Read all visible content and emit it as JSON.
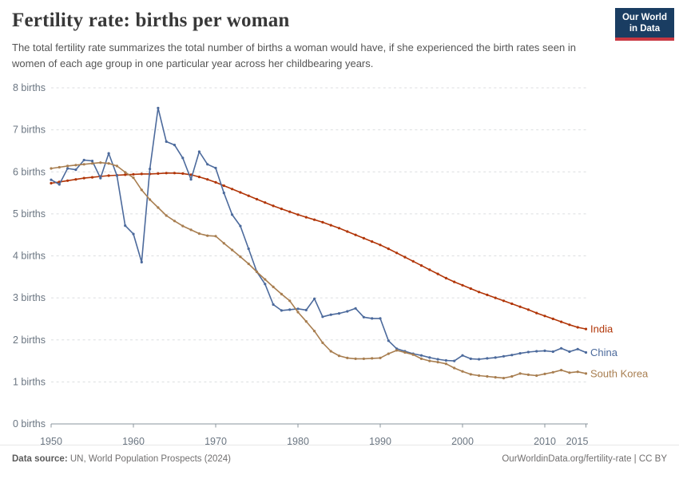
{
  "header": {
    "title": "Fertility rate: births per woman",
    "subtitle": "The total fertility rate summarizes the total number of births a woman would have, if she experienced the birth rates seen in women of each age group in one particular year across her childbearing years.",
    "logo": {
      "line1": "Our World",
      "line2": "in Data",
      "bg_color": "#1a3d62",
      "accent_color": "#c83741"
    }
  },
  "chart_data": {
    "type": "line",
    "title": "Fertility rate: births per woman",
    "xlabel": "",
    "ylabel": "births",
    "xlim": [
      1950,
      2015
    ],
    "ylim": [
      0,
      8
    ],
    "grid": "horizontal-dashed",
    "legend_position": "end-of-line-labels",
    "x_ticks": [
      1950,
      1960,
      1970,
      1980,
      1990,
      2000,
      2010,
      2015
    ],
    "y_ticks": [
      0,
      1,
      2,
      3,
      4,
      5,
      6,
      7,
      8
    ],
    "y_tick_suffix": " births",
    "years": [
      1950,
      1951,
      1952,
      1953,
      1954,
      1955,
      1956,
      1957,
      1958,
      1959,
      1960,
      1961,
      1962,
      1963,
      1964,
      1965,
      1966,
      1967,
      1968,
      1969,
      1970,
      1971,
      1972,
      1973,
      1974,
      1975,
      1976,
      1977,
      1978,
      1979,
      1980,
      1981,
      1982,
      1983,
      1984,
      1985,
      1986,
      1987,
      1988,
      1989,
      1990,
      1991,
      1992,
      1993,
      1994,
      1995,
      1996,
      1997,
      1998,
      1999,
      2000,
      2001,
      2002,
      2003,
      2004,
      2005,
      2006,
      2007,
      2008,
      2009,
      2010,
      2011,
      2012,
      2013,
      2014,
      2015
    ],
    "series": [
      {
        "name": "India",
        "color": "#b13507",
        "values": [
          5.73,
          5.76,
          5.79,
          5.82,
          5.85,
          5.87,
          5.89,
          5.91,
          5.92,
          5.93,
          5.94,
          5.95,
          5.95,
          5.96,
          5.97,
          5.97,
          5.96,
          5.93,
          5.88,
          5.82,
          5.75,
          5.67,
          5.59,
          5.51,
          5.43,
          5.35,
          5.27,
          5.19,
          5.12,
          5.05,
          4.98,
          4.92,
          4.86,
          4.8,
          4.73,
          4.66,
          4.58,
          4.5,
          4.42,
          4.34,
          4.26,
          4.17,
          4.07,
          3.97,
          3.87,
          3.77,
          3.67,
          3.57,
          3.47,
          3.38,
          3.3,
          3.22,
          3.14,
          3.07,
          3.0,
          2.93,
          2.86,
          2.79,
          2.72,
          2.64,
          2.57,
          2.5,
          2.43,
          2.36,
          2.3,
          2.26
        ]
      },
      {
        "name": "China",
        "color": "#4c6a9c",
        "values": [
          5.81,
          5.7,
          6.08,
          6.05,
          6.28,
          6.26,
          5.85,
          6.44,
          5.91,
          4.72,
          4.52,
          3.85,
          6.07,
          7.52,
          6.72,
          6.64,
          6.33,
          5.82,
          6.48,
          6.18,
          6.09,
          5.5,
          4.98,
          4.71,
          4.17,
          3.62,
          3.33,
          2.84,
          2.7,
          2.72,
          2.74,
          2.71,
          2.98,
          2.55,
          2.6,
          2.63,
          2.68,
          2.75,
          2.54,
          2.51,
          2.51,
          1.98,
          1.79,
          1.73,
          1.67,
          1.63,
          1.58,
          1.54,
          1.51,
          1.5,
          1.63,
          1.55,
          1.54,
          1.56,
          1.58,
          1.61,
          1.64,
          1.68,
          1.71,
          1.73,
          1.74,
          1.72,
          1.8,
          1.72,
          1.78,
          1.7
        ]
      },
      {
        "name": "South Korea",
        "color": "#a87e50",
        "values": [
          6.08,
          6.11,
          6.14,
          6.16,
          6.18,
          6.2,
          6.22,
          6.2,
          6.14,
          5.99,
          5.86,
          5.57,
          5.34,
          5.15,
          4.96,
          4.83,
          4.71,
          4.62,
          4.53,
          4.48,
          4.47,
          4.3,
          4.14,
          3.98,
          3.81,
          3.62,
          3.44,
          3.26,
          3.09,
          2.93,
          2.66,
          2.44,
          2.21,
          1.93,
          1.73,
          1.62,
          1.57,
          1.55,
          1.55,
          1.56,
          1.57,
          1.67,
          1.75,
          1.7,
          1.65,
          1.55,
          1.5,
          1.47,
          1.43,
          1.33,
          1.25,
          1.18,
          1.15,
          1.13,
          1.11,
          1.09,
          1.13,
          1.2,
          1.17,
          1.15,
          1.19,
          1.23,
          1.28,
          1.22,
          1.24,
          1.2
        ]
      }
    ],
    "style": {
      "grid_color": "#dcdee0",
      "axis_color": "#8a949c",
      "tick_label_color": "#6b7682"
    }
  },
  "footer": {
    "source_label": "Data source:",
    "source_text": " UN, World Population Prospects (2024)",
    "credit": "OurWorldinData.org/fertility-rate | CC BY"
  }
}
